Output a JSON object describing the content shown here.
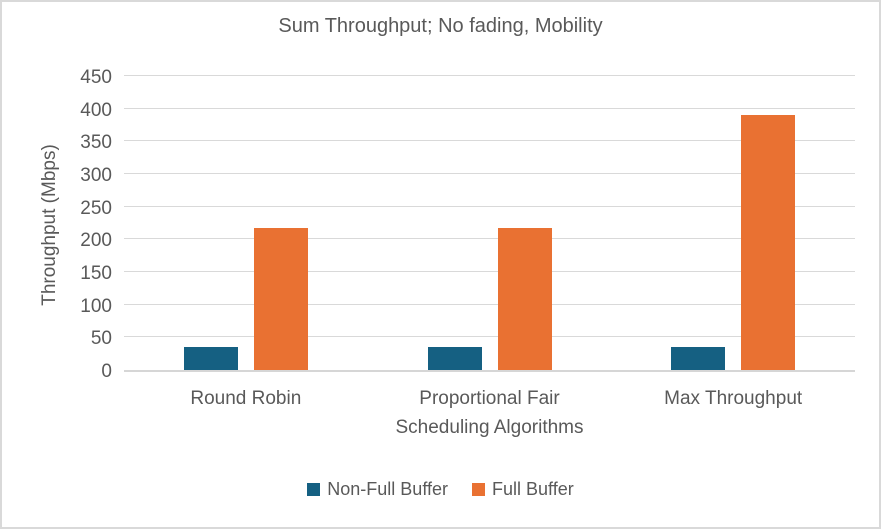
{
  "frame": {
    "background_color": "#FFFFFF",
    "border_color": "#D9D9D9",
    "text_color": "#595959"
  },
  "chart_data": {
    "type": "bar",
    "title": "Sum Throughput; No fading, Mobility",
    "xlabel": "Scheduling Algorithms",
    "ylabel": "Throughput (Mbps)",
    "categories": [
      "Round Robin",
      "Proportional Fair",
      "Max Throughput"
    ],
    "series": [
      {
        "name": "Non-Full Buffer",
        "color": "#156082",
        "values": [
          35,
          35,
          35
        ]
      },
      {
        "name": "Full Buffer",
        "color": "#E97132",
        "values": [
          218,
          217,
          390
        ]
      }
    ],
    "ylim": [
      0,
      450
    ],
    "yticks": [
      0,
      50,
      100,
      150,
      200,
      250,
      300,
      350,
      400,
      450
    ],
    "grid": "horizontal",
    "gridline_color": "#D9D9D9",
    "axis_line_color": "#D6D6D6",
    "legend_position": "bottom"
  }
}
